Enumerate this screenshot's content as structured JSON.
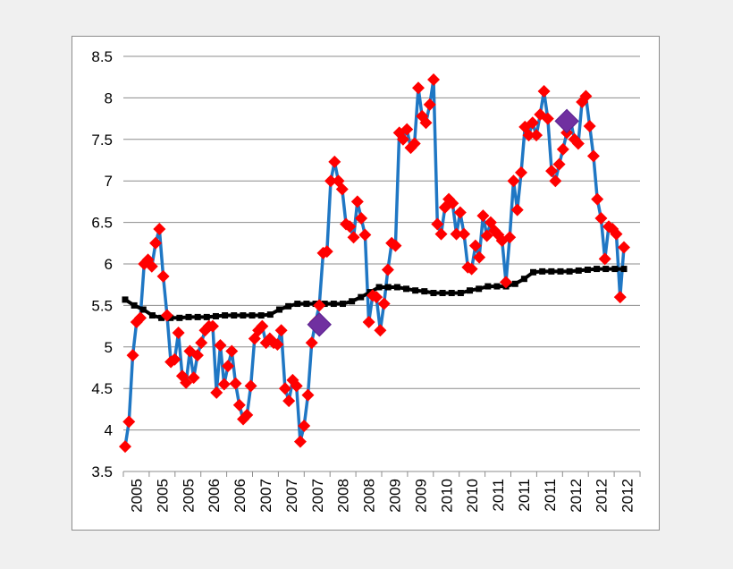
{
  "chart_data": {
    "type": "line",
    "title": "",
    "xlabel": "",
    "ylabel": "",
    "ylim": [
      3.5,
      8.5
    ],
    "y_ticks": [
      "3.5",
      "4",
      "4.5",
      "5",
      "5.5",
      "6",
      "6.5",
      "7",
      "7.5",
      "8",
      "8.5"
    ],
    "x_tick_labels": [
      "2005",
      "2005",
      "2005",
      "2006",
      "2006",
      "2007",
      "2007",
      "2007",
      "2008",
      "2008",
      "2009",
      "2009",
      "2010",
      "2010",
      "2011",
      "2011",
      "2011",
      "2012",
      "2012",
      "2012"
    ],
    "grid": true,
    "legend": "none",
    "colors": {
      "series": "#1f77c4",
      "markers": "#ff0000",
      "trend": "#000000",
      "highlight": "#7030a0"
    },
    "series": [
      {
        "values": [
          3.8,
          4.1,
          4.9,
          5.3,
          5.35,
          6.0,
          6.05,
          5.97,
          6.25,
          6.42,
          5.85,
          5.38,
          4.82,
          4.85,
          5.17,
          4.65,
          4.57,
          4.95,
          4.63,
          4.9,
          5.05,
          5.2,
          5.25,
          5.25,
          4.45,
          5.02,
          4.55,
          4.77,
          4.95,
          4.56,
          4.3,
          4.13,
          4.18,
          4.53,
          5.1,
          5.2,
          5.25,
          5.05,
          5.1,
          5.05,
          5.03,
          5.2,
          4.5,
          4.35,
          4.6,
          4.53,
          3.86,
          4.05,
          4.42,
          5.05,
          5.3,
          5.5,
          6.13,
          6.15,
          7.0,
          7.23,
          7.0,
          6.9,
          6.48,
          6.45,
          6.32,
          6.75,
          6.55,
          6.35,
          5.3,
          5.62,
          5.6,
          5.2,
          5.52,
          5.93,
          6.25,
          6.22,
          7.58,
          7.5,
          7.62,
          7.4,
          7.45,
          8.12,
          7.78,
          7.7,
          7.92,
          8.22,
          6.48,
          6.36,
          6.68,
          6.78,
          6.73,
          6.36,
          6.62,
          6.36,
          5.96,
          5.94,
          6.22,
          6.08,
          6.58,
          6.34,
          6.5,
          6.4,
          6.35,
          6.28,
          5.78,
          6.32,
          7.0,
          6.65,
          7.1,
          7.65,
          7.55,
          7.7,
          7.55,
          7.8,
          8.08,
          7.75,
          7.12,
          7.0,
          7.2,
          7.38,
          7.58,
          7.72,
          7.5,
          7.45,
          7.95,
          8.02,
          7.66,
          7.3,
          6.78,
          6.55,
          6.06,
          6.45,
          6.42,
          6.36,
          5.6,
          6.2
        ]
      },
      {
        "values": [
          5.57,
          5.5,
          5.45,
          5.38,
          5.35,
          5.35,
          5.35,
          5.36,
          5.36,
          5.36,
          5.37,
          5.38,
          5.38,
          5.38,
          5.38,
          5.38,
          5.39,
          5.45,
          5.49,
          5.52,
          5.52,
          5.52,
          5.52,
          5.52,
          5.52,
          5.55,
          5.6,
          5.66,
          5.72,
          5.72,
          5.72,
          5.7,
          5.68,
          5.67,
          5.65,
          5.65,
          5.65,
          5.65,
          5.68,
          5.7,
          5.73,
          5.73,
          5.73,
          5.76,
          5.82,
          5.9,
          5.91,
          5.91,
          5.91,
          5.91,
          5.92,
          5.93,
          5.94,
          5.94,
          5.94,
          5.94
        ]
      }
    ],
    "highlight_points": [
      {
        "x_index": 51,
        "value": 5.27
      },
      {
        "x_index": 116,
        "value": 7.72
      }
    ]
  }
}
